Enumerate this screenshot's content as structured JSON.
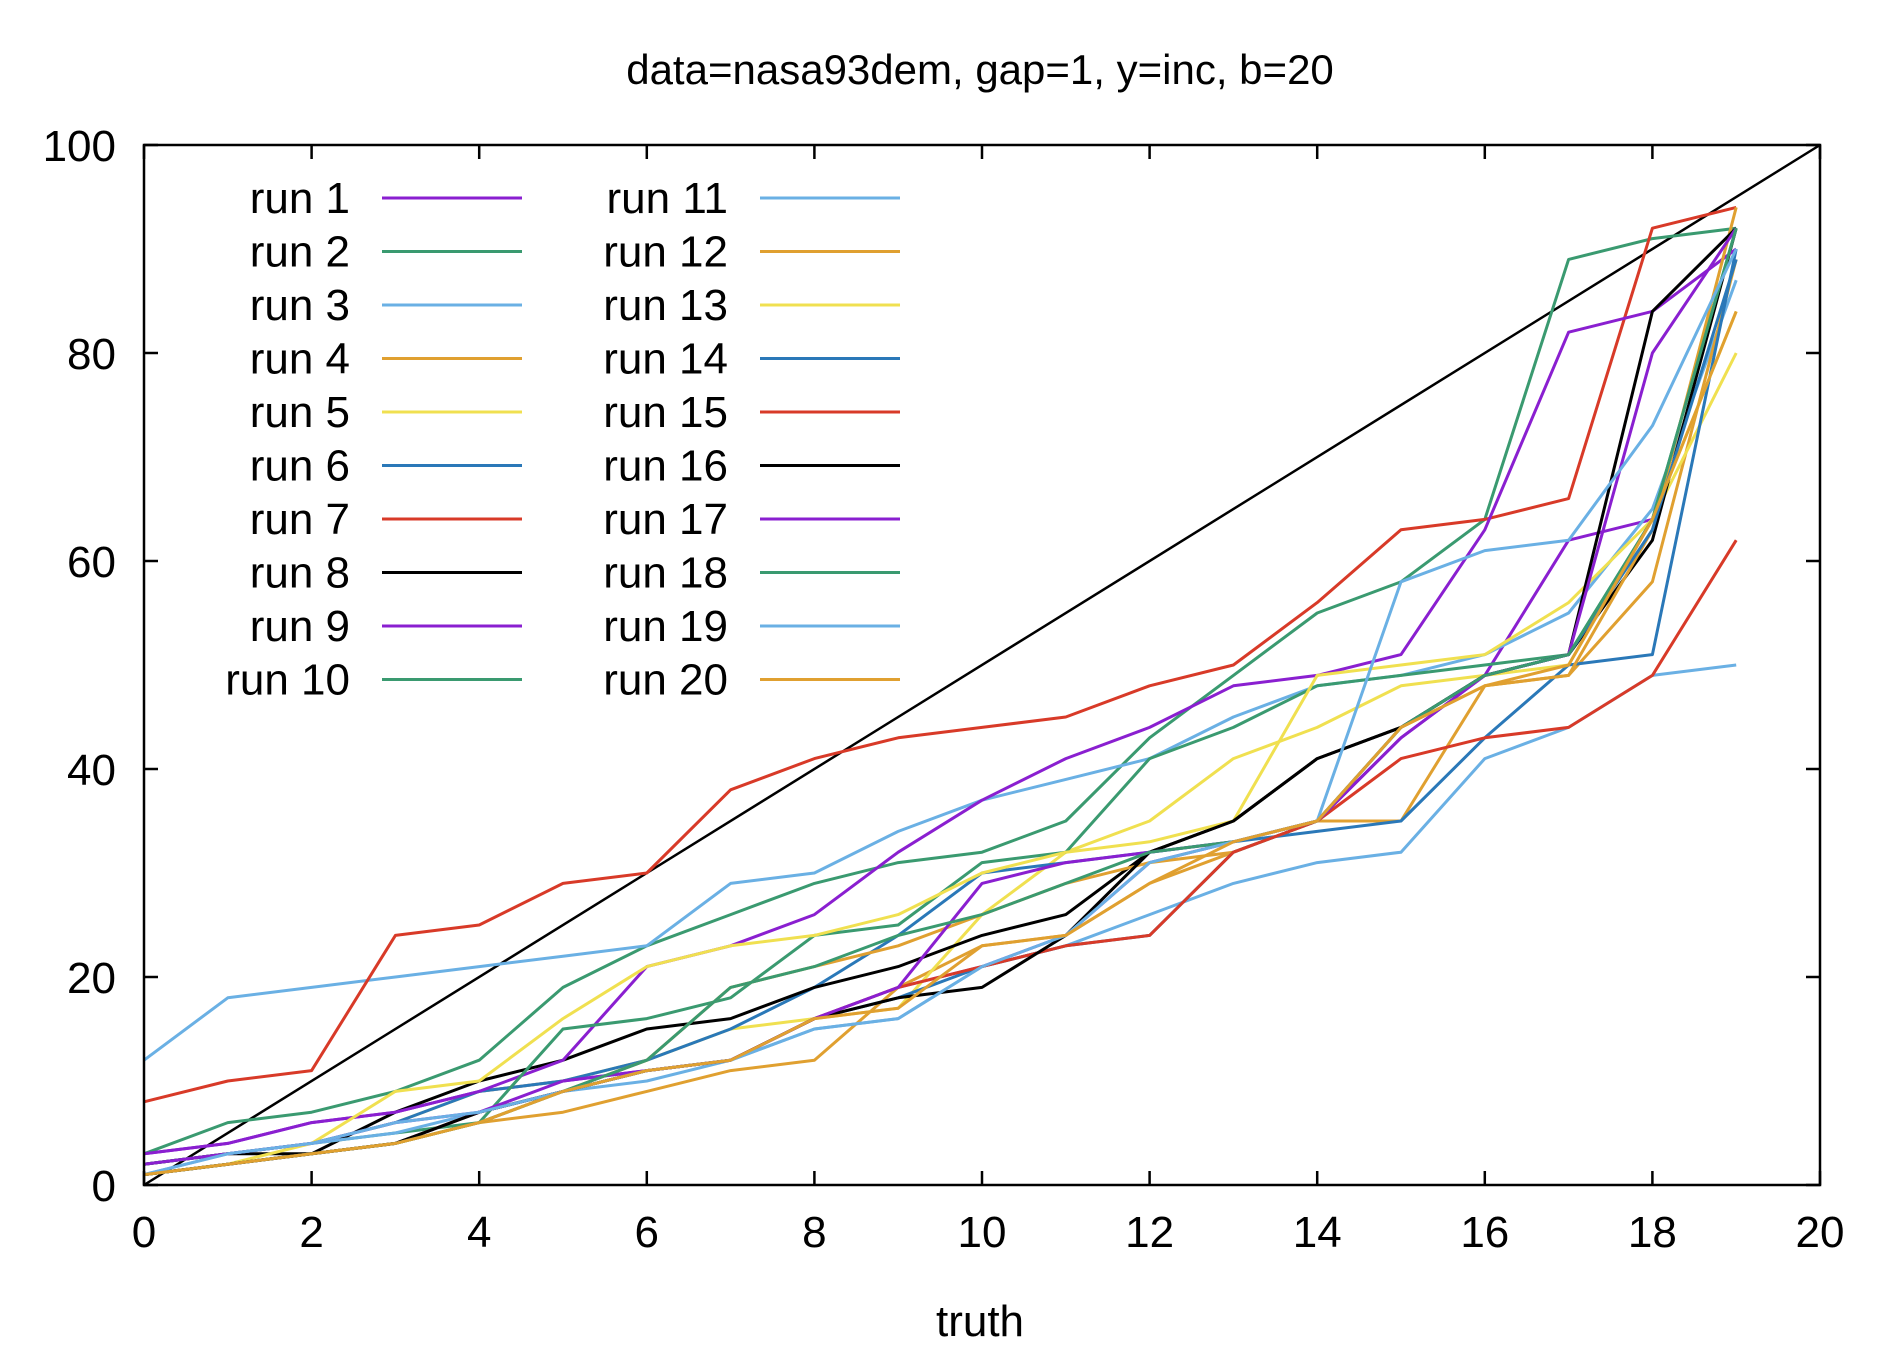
{
  "chart_data": {
    "type": "line",
    "title": "data=nasa93dem, gap=1,  y=inc, b=20",
    "xlabel": "truth",
    "ylabel": "",
    "xlim": [
      0,
      20
    ],
    "ylim": [
      0,
      100
    ],
    "xticks": [
      "0",
      "2",
      "4",
      "6",
      "8",
      "10",
      "12",
      "14",
      "16",
      "18",
      "20"
    ],
    "yticks": [
      "0",
      "20",
      "40",
      "60",
      "80",
      "100"
    ],
    "grid": false,
    "legend_position": "top-left, two columns",
    "reference_line": {
      "from": [
        0,
        0
      ],
      "to": [
        20,
        100
      ],
      "color": "#000000"
    },
    "x": [
      0,
      1,
      2,
      3,
      4,
      5,
      6,
      7,
      8,
      9,
      10,
      11,
      12,
      13,
      14,
      15,
      16,
      17,
      18,
      19
    ],
    "series": [
      {
        "name": "run 1",
        "color": "#8a1fd0",
        "values": [
          3,
          4,
          6,
          7,
          9,
          10,
          11,
          12,
          16,
          19,
          21,
          24,
          31,
          33,
          35,
          43,
          49,
          62,
          64,
          null
        ]
      },
      {
        "name": "run 2",
        "color": "#3a9a70",
        "values": [
          3,
          6,
          7,
          9,
          12,
          19,
          23,
          26,
          29,
          31,
          32,
          35,
          43,
          49,
          55,
          58,
          64,
          89,
          91,
          92
        ]
      },
      {
        "name": "run 3",
        "color": "#6ab0e4",
        "values": [
          12,
          18,
          19,
          20,
          21,
          22,
          23,
          29,
          30,
          34,
          37,
          39,
          41,
          45,
          48,
          49,
          51,
          55,
          65,
          87
        ]
      },
      {
        "name": "run 4",
        "color": "#e0a030",
        "values": [
          1,
          2,
          3,
          4,
          6,
          7,
          9,
          11,
          12,
          19,
          23,
          24,
          29,
          32,
          35,
          35,
          48,
          49,
          58,
          89
        ]
      },
      {
        "name": "run 5",
        "color": "#f0e050",
        "values": [
          2,
          3,
          4,
          6,
          9,
          10,
          12,
          15,
          16,
          17,
          26,
          32,
          35,
          41,
          44,
          48,
          49,
          50,
          64,
          80
        ]
      },
      {
        "name": "run 6",
        "color": "#2a78b8",
        "values": [
          2,
          3,
          4,
          6,
          9,
          10,
          12,
          15,
          19,
          24,
          30,
          31,
          32,
          33,
          34,
          35,
          43,
          50,
          51,
          90
        ]
      },
      {
        "name": "run 7",
        "color": "#d83a28",
        "values": [
          8,
          10,
          11,
          24,
          25,
          29,
          30,
          38,
          41,
          43,
          44,
          45,
          48,
          50,
          56,
          63,
          64,
          66,
          92,
          94
        ]
      },
      {
        "name": "run 8",
        "color": "#000000",
        "values": [
          2,
          3,
          3,
          7,
          10,
          12,
          15,
          16,
          19,
          21,
          24,
          26,
          32,
          35,
          41,
          44,
          49,
          51,
          62,
          92
        ]
      },
      {
        "name": "run 9",
        "color": "#8a1fd0",
        "values": [
          3,
          4,
          6,
          7,
          9,
          12,
          21,
          23,
          26,
          32,
          37,
          41,
          44,
          48,
          49,
          51,
          63,
          82,
          84,
          90
        ]
      },
      {
        "name": "run 10",
        "color": "#3a9a70",
        "values": [
          2,
          3,
          4,
          5,
          6,
          15,
          16,
          18,
          24,
          25,
          31,
          32,
          41,
          44,
          48,
          49,
          50,
          51,
          64,
          92
        ]
      },
      {
        "name": "run 11",
        "color": "#6ab0e4",
        "values": [
          1,
          3,
          4,
          5,
          7,
          9,
          10,
          12,
          15,
          16,
          21,
          23,
          26,
          29,
          31,
          32,
          41,
          44,
          49,
          50
        ]
      },
      {
        "name": "run 12",
        "color": "#e0a030",
        "values": [
          1,
          2,
          3,
          4,
          6,
          9,
          12,
          19,
          21,
          23,
          26,
          29,
          31,
          32,
          35,
          44,
          48,
          49,
          63,
          94
        ]
      },
      {
        "name": "run 13",
        "color": "#f0e050",
        "values": [
          1,
          2,
          4,
          9,
          10,
          16,
          21,
          23,
          24,
          26,
          30,
          32,
          33,
          35,
          49,
          50,
          51,
          56,
          64,
          84
        ]
      },
      {
        "name": "run 14",
        "color": "#2a78b8",
        "values": [
          1,
          2,
          3,
          4,
          7,
          9,
          11,
          12,
          16,
          18,
          21,
          23,
          24,
          32,
          35,
          44,
          49,
          51,
          63,
          89
        ]
      },
      {
        "name": "run 15",
        "color": "#d83a28",
        "values": [
          1,
          2,
          3,
          4,
          7,
          9,
          11,
          12,
          16,
          19,
          21,
          23,
          24,
          32,
          35,
          41,
          43,
          44,
          49,
          62
        ]
      },
      {
        "name": "run 16",
        "color": "#000000",
        "values": [
          1,
          2,
          3,
          4,
          7,
          9,
          11,
          12,
          16,
          18,
          19,
          24,
          32,
          35,
          41,
          44,
          49,
          51,
          84,
          92
        ]
      },
      {
        "name": "run 17",
        "color": "#8a1fd0",
        "values": [
          2,
          3,
          4,
          6,
          7,
          10,
          11,
          12,
          16,
          19,
          29,
          31,
          32,
          33,
          35,
          43,
          49,
          51,
          80,
          92
        ]
      },
      {
        "name": "run 18",
        "color": "#3a9a70",
        "values": [
          1,
          2,
          3,
          4,
          6,
          9,
          12,
          19,
          21,
          24,
          26,
          29,
          32,
          33,
          35,
          44,
          49,
          51,
          64,
          92
        ]
      },
      {
        "name": "run 19",
        "color": "#6ab0e4",
        "values": [
          1,
          3,
          4,
          6,
          7,
          9,
          11,
          12,
          15,
          16,
          21,
          24,
          31,
          33,
          35,
          58,
          61,
          62,
          73,
          90
        ]
      },
      {
        "name": "run 20",
        "color": "#e0a030",
        "values": [
          1,
          2,
          3,
          4,
          6,
          9,
          11,
          12,
          16,
          17,
          23,
          24,
          29,
          33,
          35,
          44,
          48,
          50,
          64,
          84
        ]
      }
    ]
  }
}
